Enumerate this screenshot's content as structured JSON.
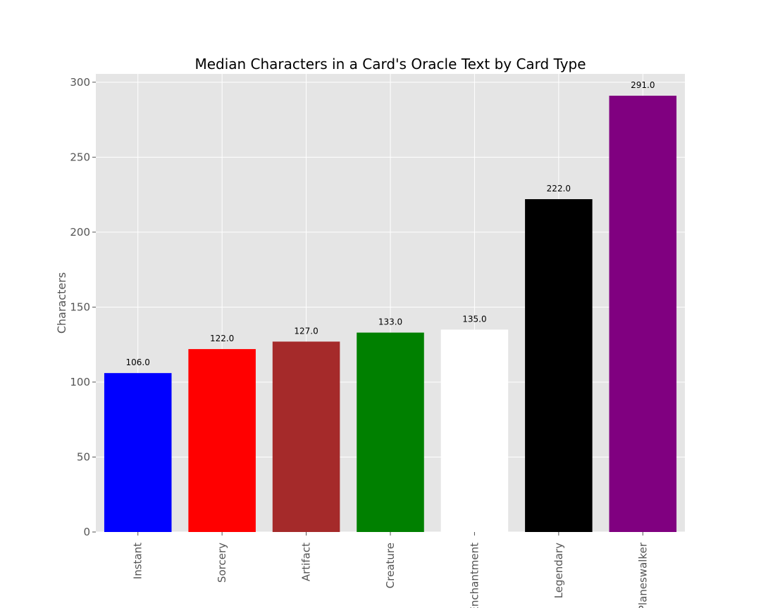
{
  "chart_data": {
    "type": "bar",
    "title": "Median Characters in a Card's Oracle Text by Card Type",
    "xlabel": "",
    "ylabel": "Characters",
    "categories": [
      "Instant",
      "Sorcery",
      "Artifact",
      "Creature",
      "Enchantment",
      "Legendary",
      "Planeswalker"
    ],
    "values": [
      106.0,
      122.0,
      127.0,
      133.0,
      135.0,
      222.0,
      291.0
    ],
    "value_labels": [
      "106.0",
      "122.0",
      "127.0",
      "133.0",
      "135.0",
      "222.0",
      "291.0"
    ],
    "colors": [
      "#0000ff",
      "#ff0000",
      "#a52a2a",
      "#008000",
      "#ffffff",
      "#000000",
      "#800080"
    ],
    "yticks": [
      0,
      50,
      100,
      150,
      200,
      250,
      300
    ],
    "ylim": [
      0,
      305.55
    ],
    "grid": true,
    "plot_background": "#e5e5e5",
    "style": "ggplot"
  }
}
